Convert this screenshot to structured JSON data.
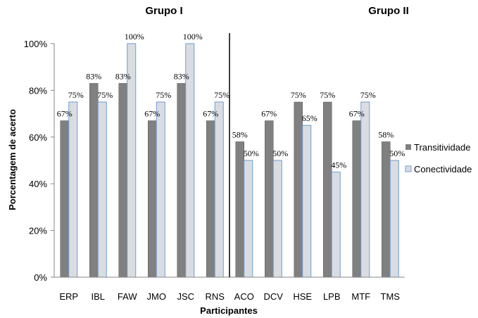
{
  "chart_data": {
    "type": "bar",
    "group_titles": [
      "Grupo I",
      "Grupo II"
    ],
    "categories": [
      "ERP",
      "IBL",
      "FAW",
      "JMO",
      "JSC",
      "RNS",
      "ACO",
      "DCV",
      "HSE",
      "LPB",
      "MTF",
      "TMS"
    ],
    "groups": [
      {
        "name": "Grupo I",
        "categories": [
          "ERP",
          "IBL",
          "FAW",
          "JMO",
          "JSC",
          "RNS"
        ]
      },
      {
        "name": "Grupo II",
        "categories": [
          "ACO",
          "DCV",
          "HSE",
          "LPB",
          "MTF",
          "TMS"
        ]
      }
    ],
    "series": [
      {
        "name": "Transitividade",
        "values": [
          67,
          83,
          83,
          67,
          83,
          67,
          58,
          67,
          75,
          75,
          67,
          58
        ],
        "color": "#808080"
      },
      {
        "name": "Conectividade",
        "values": [
          75,
          75,
          100,
          75,
          100,
          75,
          50,
          50,
          65,
          45,
          75,
          50
        ],
        "color": "#d9dde2",
        "stroke": "#6f9bd1"
      }
    ],
    "data_labels": [
      [
        "67%",
        "83%",
        "83%",
        "67%",
        "83%",
        "67%",
        "58%",
        "67%",
        "75%",
        "75%",
        "67%",
        "58%"
      ],
      [
        "75%",
        "75%",
        "100%",
        "75%",
        "100%",
        "75%",
        "50%",
        "50%",
        "65%",
        "45%",
        "75%",
        "50%"
      ]
    ],
    "xlabel": "Participantes",
    "ylabel": "Porcentagem de acerto",
    "ylim": [
      0,
      100
    ],
    "yticks": [
      "0%",
      "20%",
      "40%",
      "60%",
      "80%",
      "100%"
    ],
    "ytick_values": [
      0,
      20,
      40,
      60,
      80,
      100
    ],
    "legend_position": "right",
    "grid": false,
    "group_divider_after_index": 5
  }
}
